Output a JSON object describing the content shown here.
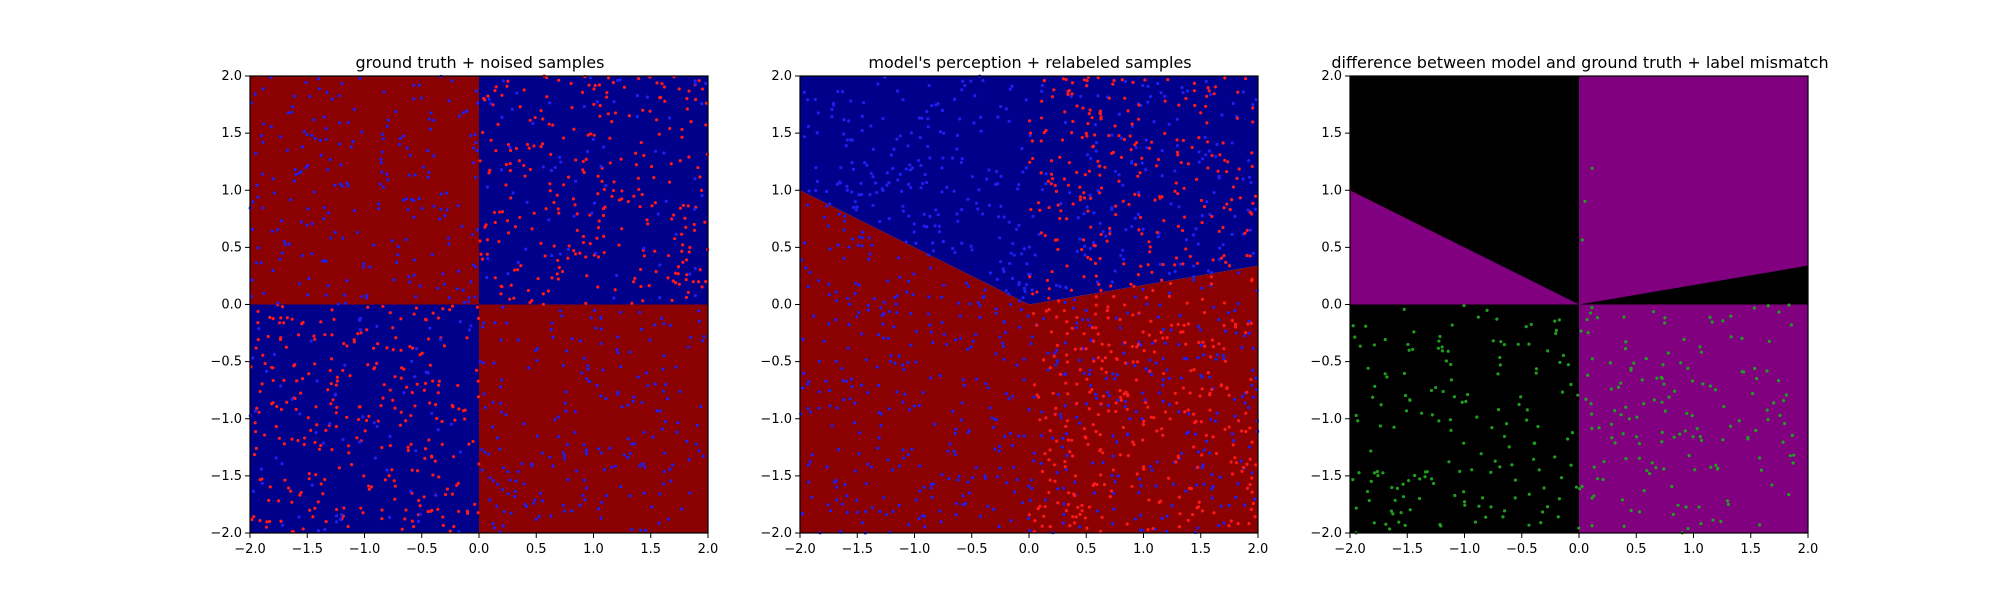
{
  "colors": {
    "navy": "#00008b",
    "darkred": "#8b0000",
    "blue_point": "#1f1ff0",
    "red_point": "#ff1a1a",
    "green_point": "#1f9e1f",
    "black": "#000000",
    "purple": "#800080"
  },
  "chart_data": [
    {
      "type": "scatter",
      "title": "ground truth + noised samples",
      "xlim": [
        -2.0,
        2.0
      ],
      "ylim": [
        -2.0,
        2.0
      ],
      "xticks": [
        "−2.0",
        "−1.5",
        "−1.0",
        "−0.5",
        "0.0",
        "0.5",
        "1.0",
        "1.5",
        "2.0"
      ],
      "yticks": [
        "−2.0",
        "−1.5",
        "−1.0",
        "−0.5",
        "0.0",
        "0.5",
        "1.0",
        "1.5",
        "2.0"
      ],
      "background": "decision regions: x*y > 0 dark blue, x*y < 0 dark red",
      "region_colors": [
        "#00008b",
        "#8b0000"
      ],
      "region_rule": "xor",
      "series": [
        {
          "color": "#ff1a1a",
          "rule": "true_red",
          "count": 560,
          "seed": 11
        },
        {
          "color": "#1f1ff0",
          "rule": "true_blue",
          "count": 560,
          "seed": 12
        }
      ]
    },
    {
      "type": "scatter",
      "title": "model's perception + relabeled samples",
      "xlim": [
        -2.0,
        2.0
      ],
      "ylim": [
        -2.0,
        2.0
      ],
      "xticks": [
        "−2.0",
        "−1.5",
        "−1.0",
        "−0.5",
        "0.0",
        "0.5",
        "1.0",
        "1.5",
        "2.0"
      ],
      "yticks": [
        "−2.0",
        "−1.5",
        "−1.0",
        "−0.5",
        "0.0",
        "0.5",
        "1.0",
        "1.5",
        "2.0"
      ],
      "background": "model decision regions split by line y=-0.5x (x<0) and y=0.17x (x>0)",
      "region_colors": [
        "#00008b",
        "#8b0000"
      ],
      "region_rule": "model",
      "series": [
        {
          "color": "#1f1ff0",
          "rule": "model_blue",
          "count": 900,
          "seed": 21
        },
        {
          "color": "#ff1a1a",
          "rule": "model_red",
          "count": 560,
          "seed": 22
        }
      ]
    },
    {
      "type": "scatter",
      "title": "difference between model and ground truth + label mismatch",
      "xlim": [
        -2.0,
        2.0
      ],
      "ylim": [
        -2.0,
        2.0
      ],
      "xticks": [
        "−2.0",
        "−1.5",
        "−1.0",
        "−0.5",
        "0.0",
        "0.5",
        "1.0",
        "1.5",
        "2.0"
      ],
      "yticks": [
        "−2.0",
        "−1.5",
        "−1.0",
        "−0.5",
        "0.0",
        "0.5",
        "1.0",
        "1.5",
        "2.0"
      ],
      "background": "agreement black, disagreement purple",
      "region_colors": [
        "#000000",
        "#800080"
      ],
      "region_rule": "diff",
      "series": [
        {
          "color": "#1f9e1f",
          "rule": "mismatch",
          "count": 320,
          "seed": 31
        }
      ]
    }
  ]
}
